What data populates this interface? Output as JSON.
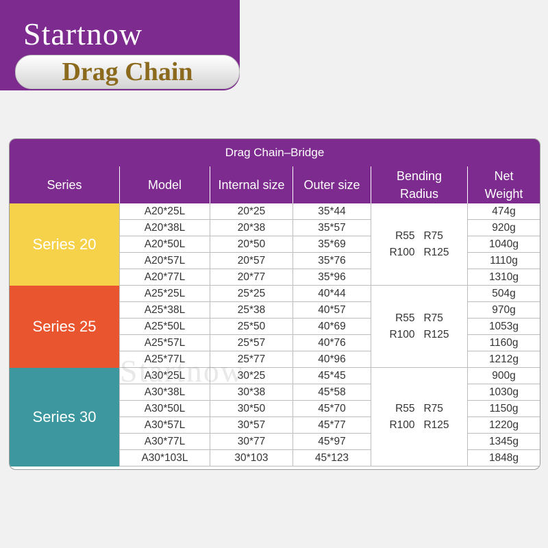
{
  "header": {
    "brand": "Startnow",
    "subtitle": "Drag Chain",
    "banner_color": "#7d2b8e",
    "subtitle_color": "#8b6a1e"
  },
  "table": {
    "title": "Drag Chain–Bridge",
    "columns": [
      "Series",
      "Model",
      "Internal size",
      "Outer size",
      "Bending Radius",
      "Net Weight"
    ],
    "groups": [
      {
        "series": "Series 20",
        "color": "#f6d24a",
        "bending_radius": [
          "R55   R75",
          "R100   R125"
        ],
        "rows": [
          [
            "A20*25L",
            "20*25",
            "35*44",
            "474g"
          ],
          [
            "A20*38L",
            "20*38",
            "35*57",
            "920g"
          ],
          [
            "A20*50L",
            "20*50",
            "35*69",
            "1040g"
          ],
          [
            "A20*57L",
            "20*57",
            "35*76",
            "1110g"
          ],
          [
            "A20*77L",
            "20*77",
            "35*96",
            "1310g"
          ]
        ]
      },
      {
        "series": "Series 25",
        "color": "#e8552e",
        "bending_radius": [
          "R55   R75",
          "R100   R125"
        ],
        "rows": [
          [
            "A25*25L",
            "25*25",
            "40*44",
            "504g"
          ],
          [
            "A25*38L",
            "25*38",
            "40*57",
            "970g"
          ],
          [
            "A25*50L",
            "25*50",
            "40*69",
            "1053g"
          ],
          [
            "A25*57L",
            "25*57",
            "40*76",
            "1160g"
          ],
          [
            "A25*77L",
            "25*77",
            "40*96",
            "1212g"
          ]
        ]
      },
      {
        "series": "Series 30",
        "color": "#3c989e",
        "bending_radius": [
          "R55   R75",
          "R100   R125"
        ],
        "rows": [
          [
            "A30*25L",
            "30*25",
            "45*45",
            "900g"
          ],
          [
            "A30*38L",
            "30*38",
            "45*58",
            "1030g"
          ],
          [
            "A30*50L",
            "30*50",
            "45*70",
            "1150g"
          ],
          [
            "A30*57L",
            "30*57",
            "45*77",
            "1220g"
          ],
          [
            "A30*77L",
            "30*77",
            "45*97",
            "1345g"
          ],
          [
            "A30*103L",
            "30*103",
            "45*123",
            "1848g"
          ]
        ]
      }
    ]
  },
  "watermark": "Startnow"
}
